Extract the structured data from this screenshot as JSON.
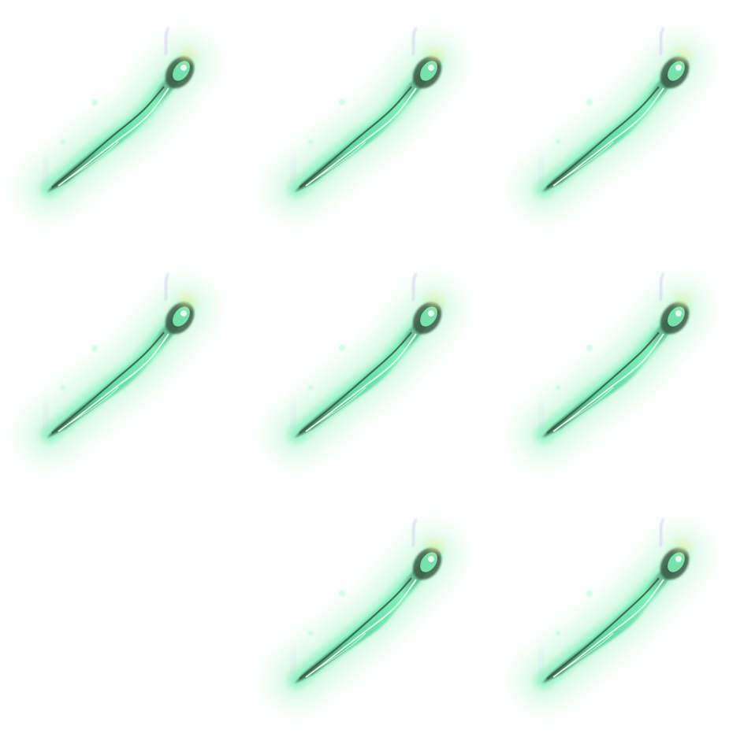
{
  "sprite_sheet": {
    "columns": 3,
    "rows": 3,
    "background_color": "#ffffff",
    "frames": [
      {
        "filled": true,
        "icon": "energy-spear-icon",
        "variant": 0
      },
      {
        "filled": true,
        "icon": "energy-spear-icon",
        "variant": 1
      },
      {
        "filled": true,
        "icon": "energy-spear-icon",
        "variant": 2
      },
      {
        "filled": true,
        "icon": "energy-spear-icon",
        "variant": 3
      },
      {
        "filled": true,
        "icon": "energy-spear-icon",
        "variant": 4
      },
      {
        "filled": true,
        "icon": "energy-spear-icon",
        "variant": 5
      },
      {
        "filled": false
      },
      {
        "filled": true,
        "icon": "energy-spear-icon",
        "variant": 6
      },
      {
        "filled": true,
        "icon": "energy-spear-icon",
        "variant": 7
      }
    ],
    "colors": {
      "glow_outer": "#d9fbe6",
      "glow_inner": "#7ef0b8",
      "spear_body": "#5fd6a3",
      "spear_highlight": "#e8fff4",
      "spear_dark": "#3a5a44",
      "tip_yellow": "#f2f5a8",
      "wisp_purple": "#c9c6ee"
    }
  }
}
